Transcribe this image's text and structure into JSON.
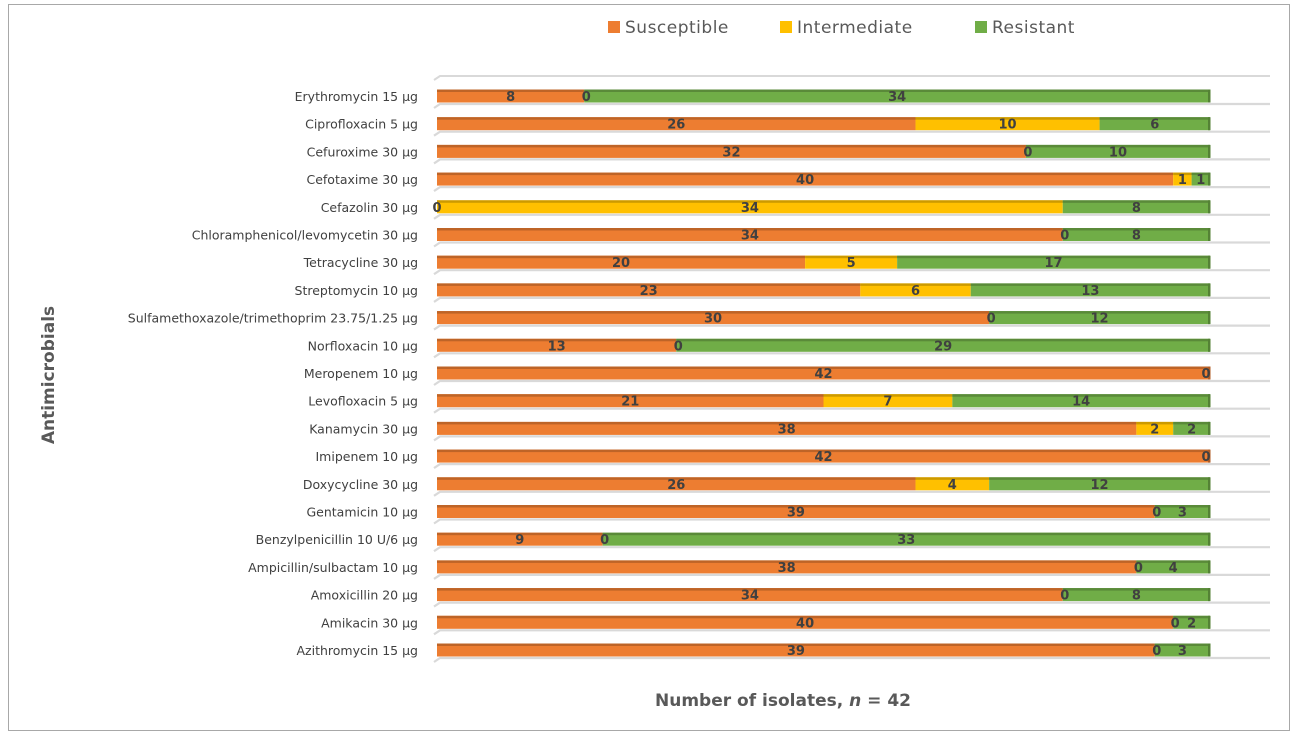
{
  "chart_data": {
    "type": "bar",
    "orientation": "horizontal",
    "stacked": true,
    "xlabel_prefix": "Number of isolates, ",
    "xlabel_italic": "n",
    "xlabel_suffix": " = 42",
    "ylabel": "Antimicrobials",
    "xlim": [
      0,
      42
    ],
    "legend_position": "top",
    "categories": [
      "Erythromycin 15 µg",
      "Ciprofloxacin 5 µg",
      "Cefuroxime 30 µg",
      "Cefotaxime 30 µg",
      "Cefazolin 30 µg",
      "Chloramphenicol/levomycetin 30 µg",
      "Tetracycline 30 µg",
      "Streptomycin 10 µg",
      "Sulfamethoxazole/trimethoprim 23.75/1.25 µg",
      "Norfloxacin 10 µg",
      "Meropenem 10 µg",
      "Levofloxacin 5 µg",
      "Kanamycin 30 µg",
      "Imipenem 10 µg",
      "Doxycycline 30 µg",
      "Gentamicin 10 µg",
      "Benzylpenicillin 10 U/6 µg",
      "Ampicillin/sulbactam 10 µg",
      "Amoxicillin 20 µg",
      "Amikacin 30 µg",
      "Azithromycin 15 µg"
    ],
    "series": [
      {
        "name": "Susceptible",
        "color": "#ed7d31",
        "values": [
          8,
          26,
          32,
          40,
          0,
          34,
          20,
          23,
          30,
          13,
          42,
          21,
          38,
          42,
          26,
          39,
          9,
          38,
          34,
          40,
          39
        ]
      },
      {
        "name": "Intermediate",
        "color": "#ffc000",
        "values": [
          0,
          10,
          0,
          1,
          34,
          0,
          5,
          6,
          0,
          0,
          null,
          7,
          2,
          null,
          4,
          0,
          0,
          0,
          0,
          0,
          0
        ]
      },
      {
        "name": "Resistant",
        "color": "#70ad47",
        "values": [
          34,
          6,
          10,
          1,
          8,
          8,
          17,
          13,
          12,
          29,
          0,
          14,
          2,
          0,
          12,
          3,
          33,
          4,
          8,
          2,
          3
        ]
      }
    ]
  }
}
